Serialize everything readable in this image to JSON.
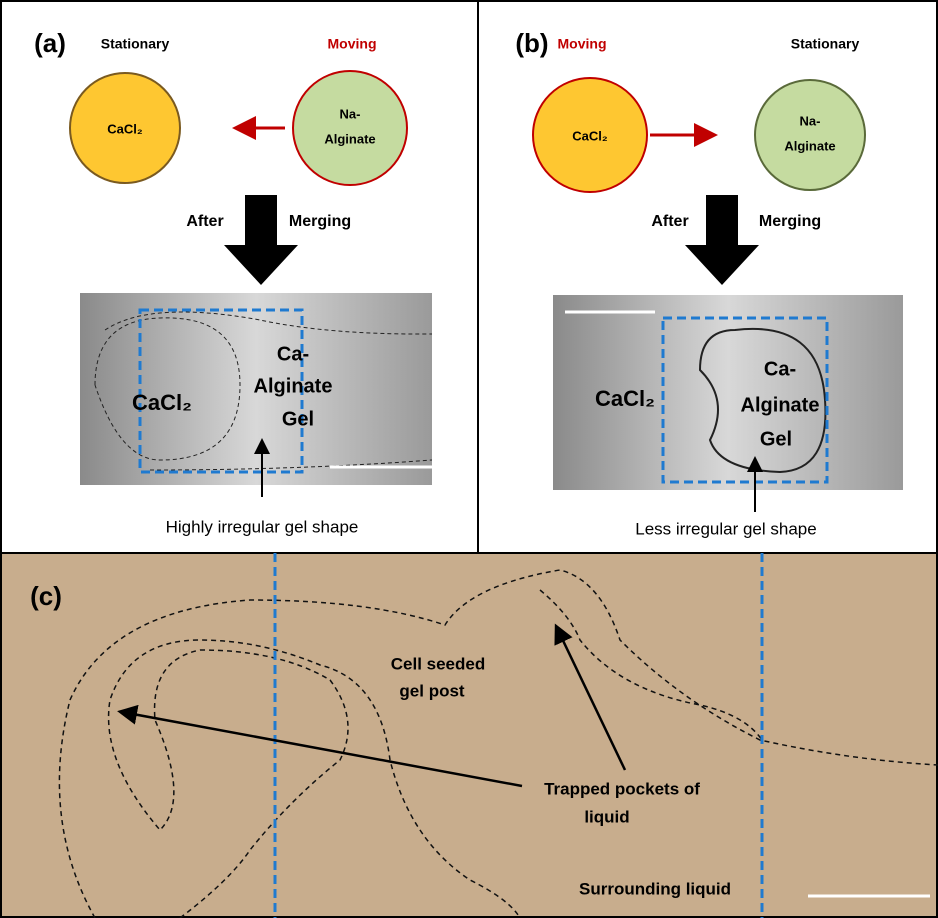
{
  "panel_a": {
    "label": "(a)",
    "left_state": "Stationary",
    "right_state": "Moving",
    "left_circle": [
      "CaCl₂"
    ],
    "right_circle": [
      "Na-",
      "Alginate"
    ],
    "after": "After",
    "merging": "Merging",
    "image_left": "CaCl₂",
    "image_right": [
      "Ca-",
      "Alginate",
      "Gel"
    ],
    "caption": "Highly irregular gel shape"
  },
  "panel_b": {
    "label": "(b)",
    "left_state": "Moving",
    "right_state": "Stationary",
    "left_circle": [
      "CaCl₂"
    ],
    "right_circle": [
      "Na-",
      "Alginate"
    ],
    "after": "After",
    "merging": "Merging",
    "image_left": "CaCl₂",
    "image_right": [
      "Ca-",
      "Alginate",
      "Gel"
    ],
    "caption": "Less irregular gel shape"
  },
  "panel_c": {
    "label": "(c)",
    "cell_seeded": [
      "Cell seeded",
      "gel post"
    ],
    "trapped": [
      "Trapped pockets of",
      "liquid"
    ],
    "surrounding": "Surrounding liquid"
  }
}
